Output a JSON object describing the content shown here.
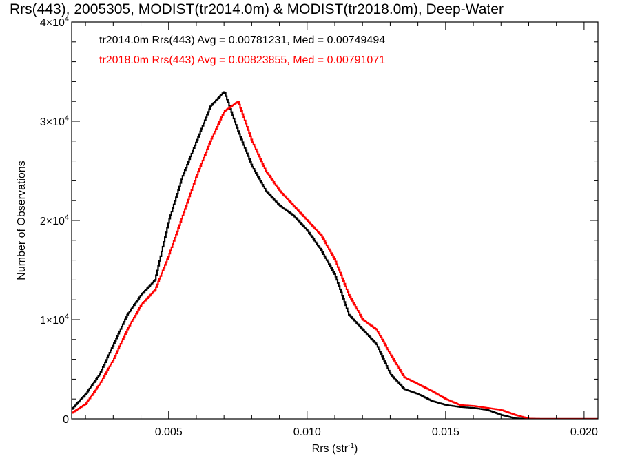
{
  "chart_data": {
    "type": "line",
    "title": "Rrs(443), 2005305, MODIST(tr2014.0m) & MODIST(tr2018.0m), Deep-Water",
    "xlabel": "Rrs (str",
    "xlabel_sup": "-1",
    "xlabel_tail": ")",
    "ylabel": "Number of Observations",
    "xlim": [
      0.0015,
      0.0205
    ],
    "ylim": [
      0,
      40000
    ],
    "x_ticks": [
      {
        "value": 0.005,
        "label": "0.005"
      },
      {
        "value": 0.01,
        "label": "0.010"
      },
      {
        "value": 0.015,
        "label": "0.015"
      },
      {
        "value": 0.02,
        "label": "0.020"
      }
    ],
    "y_ticks": [
      {
        "value": 0,
        "label": "0",
        "mant": "",
        "exp": ""
      },
      {
        "value": 10000,
        "label": "",
        "mant": "1×10",
        "exp": "4"
      },
      {
        "value": 20000,
        "label": "",
        "mant": "2×10",
        "exp": "4"
      },
      {
        "value": 30000,
        "label": "",
        "mant": "3×10",
        "exp": "4"
      },
      {
        "value": 40000,
        "label": "",
        "mant": "4×10",
        "exp": "4"
      }
    ],
    "annotations": [
      {
        "text": "tr2014.0m Rrs(443) Avg = 0.00781231, Med = 0.00749494",
        "color": "#000000"
      },
      {
        "text": "tr2018.0m Rrs(443) Avg = 0.00823855, Med = 0.00791071",
        "color": "#ff0000"
      }
    ],
    "series": [
      {
        "color": "#000000",
        "x": [
          0.0015,
          0.002,
          0.0025,
          0.003,
          0.0035,
          0.004,
          0.0045,
          0.005,
          0.0055,
          0.006,
          0.0065,
          0.007,
          0.0075,
          0.008,
          0.0085,
          0.009,
          0.0095,
          0.01,
          0.0105,
          0.011,
          0.0115,
          0.012,
          0.0125,
          0.013,
          0.0135,
          0.014,
          0.0145,
          0.015,
          0.0155,
          0.016,
          0.0165,
          0.017,
          0.0175,
          0.018,
          0.0185,
          0.019,
          0.0195,
          0.02,
          0.0205
        ],
        "y": [
          1000,
          2500,
          4500,
          7500,
          10500,
          12500,
          14000,
          20000,
          24500,
          28000,
          31500,
          33000,
          29000,
          25500,
          23000,
          21500,
          20500,
          19000,
          17000,
          14500,
          10500,
          9000,
          7500,
          4500,
          3000,
          2500,
          1800,
          1400,
          1200,
          1100,
          900,
          400,
          50,
          10,
          0,
          0,
          0,
          0,
          0
        ]
      },
      {
        "color": "#ff0000",
        "x": [
          0.0015,
          0.002,
          0.0025,
          0.003,
          0.0035,
          0.004,
          0.0045,
          0.005,
          0.0055,
          0.006,
          0.0065,
          0.007,
          0.0075,
          0.008,
          0.0085,
          0.009,
          0.0095,
          0.01,
          0.0105,
          0.011,
          0.0115,
          0.012,
          0.0125,
          0.013,
          0.0135,
          0.014,
          0.0145,
          0.015,
          0.0155,
          0.016,
          0.0165,
          0.017,
          0.0175,
          0.018,
          0.0185,
          0.019,
          0.0195,
          0.02,
          0.0205
        ],
        "y": [
          600,
          1500,
          3500,
          6000,
          9000,
          11500,
          13000,
          16500,
          20500,
          24500,
          28000,
          31000,
          32000,
          28000,
          25000,
          23000,
          21500,
          20000,
          18500,
          16000,
          12500,
          10000,
          9000,
          6500,
          4200,
          3500,
          2800,
          2000,
          1400,
          1300,
          1100,
          900,
          400,
          20,
          0,
          0,
          0,
          0,
          0
        ]
      }
    ],
    "grid": false,
    "legend": "top-left"
  }
}
